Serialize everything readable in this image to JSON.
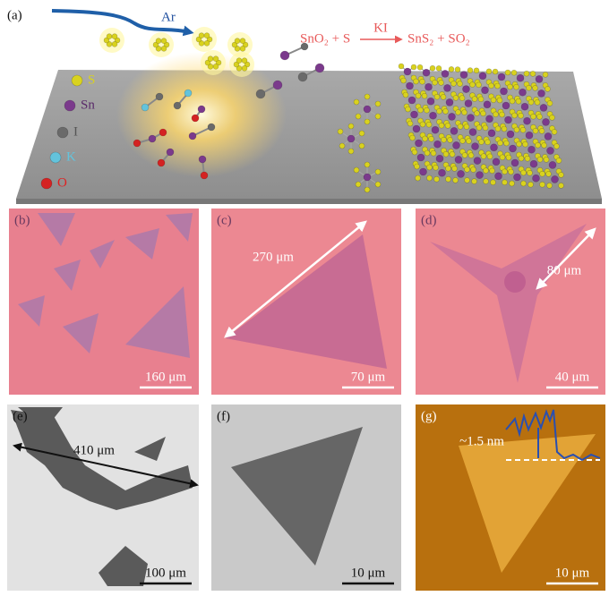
{
  "panels": {
    "a": {
      "label": "(a)",
      "carrier_gas": "Ar",
      "legend": [
        "S",
        "Sn",
        "I",
        "K",
        "O"
      ],
      "reaction": {
        "reactants": "SnO₂ + S",
        "catalyst": "KI",
        "products": "SnS₂ + SO₂"
      }
    },
    "b": {
      "label": "(b)",
      "scale_bar": "160 μm"
    },
    "c": {
      "label": "(c)",
      "scale_bar": "70 μm",
      "annotation": "270 μm"
    },
    "d": {
      "label": "(d)",
      "scale_bar": "40 μm",
      "annotation": "80 μm"
    },
    "e": {
      "label": "(e)",
      "scale_bar": "100 μm",
      "annotation": "410 μm"
    },
    "f": {
      "label": "(f)",
      "scale_bar": "10 μm"
    },
    "g": {
      "label": "(g)",
      "scale_bar": "10 μm",
      "annotation": "~1.5 nm"
    }
  }
}
